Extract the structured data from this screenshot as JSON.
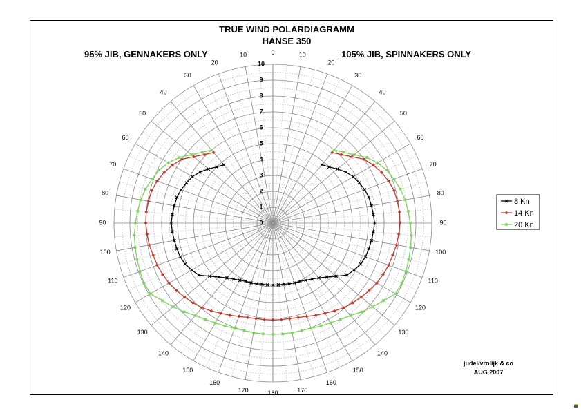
{
  "chart_data": {
    "type": "polar",
    "title": "TRUE WIND POLARDIAGRAMM",
    "subtitle": "HANSE 350",
    "left_caption": "95% JIB, GENNAKERS ONLY",
    "right_caption": "105% JIB, SPINNAKERS ONLY",
    "angle_ticks": [
      "0",
      "10",
      "20",
      "30",
      "40",
      "50",
      "60",
      "70",
      "80",
      "90",
      "100",
      "110",
      "120",
      "130",
      "140",
      "150",
      "160",
      "170",
      "180"
    ],
    "radial_ticks": [
      "0",
      "1",
      "2",
      "3",
      "4",
      "5",
      "6",
      "7",
      "8",
      "9",
      "10"
    ],
    "rlim": [
      0,
      10
    ],
    "angles": [
      40,
      45,
      50,
      55,
      60,
      65,
      70,
      75,
      80,
      85,
      90,
      95,
      100,
      105,
      110,
      115,
      120,
      125,
      130,
      135,
      140,
      145,
      150,
      155,
      160,
      165,
      170,
      175,
      180
    ],
    "legend_position": "right",
    "series": [
      {
        "name": "8 Kn",
        "color": "#000000",
        "marker": "x",
        "values": [
          4.8,
          5.0,
          5.3,
          5.6,
          5.85,
          6.0,
          6.15,
          6.25,
          6.3,
          6.35,
          6.4,
          6.35,
          6.3,
          6.25,
          6.2,
          6.1,
          5.9,
          5.7,
          5.2,
          4.8,
          4.5,
          4.3,
          4.15,
          4.05,
          4.0,
          3.95,
          3.9,
          3.9,
          3.9
        ]
      },
      {
        "name": "14 Kn",
        "color": "#c0392b",
        "marker": "diamond",
        "values": [
          5.8,
          6.1,
          6.5,
          7.0,
          7.3,
          7.55,
          7.75,
          7.9,
          7.95,
          8.0,
          8.0,
          7.95,
          7.9,
          7.8,
          7.75,
          7.65,
          7.55,
          7.4,
          7.25,
          7.1,
          6.95,
          6.75,
          6.55,
          6.4,
          6.25,
          6.15,
          6.1,
          6.1,
          6.1
        ]
      },
      {
        "name": "20 Kn",
        "color": "#7dd35f",
        "marker": "square",
        "values": [
          6.0,
          6.3,
          6.7,
          7.2,
          7.6,
          7.9,
          8.1,
          8.3,
          8.45,
          8.55,
          8.65,
          8.75,
          8.8,
          8.85,
          8.9,
          8.95,
          8.9,
          8.5,
          8.2,
          7.9,
          7.6,
          7.4,
          7.25,
          7.15,
          7.05,
          7.0,
          7.0,
          7.0,
          7.0
        ]
      }
    ],
    "grid": true
  },
  "credit": {
    "line1": "judel/vrolijk & co",
    "line2": "AUG 2007"
  }
}
